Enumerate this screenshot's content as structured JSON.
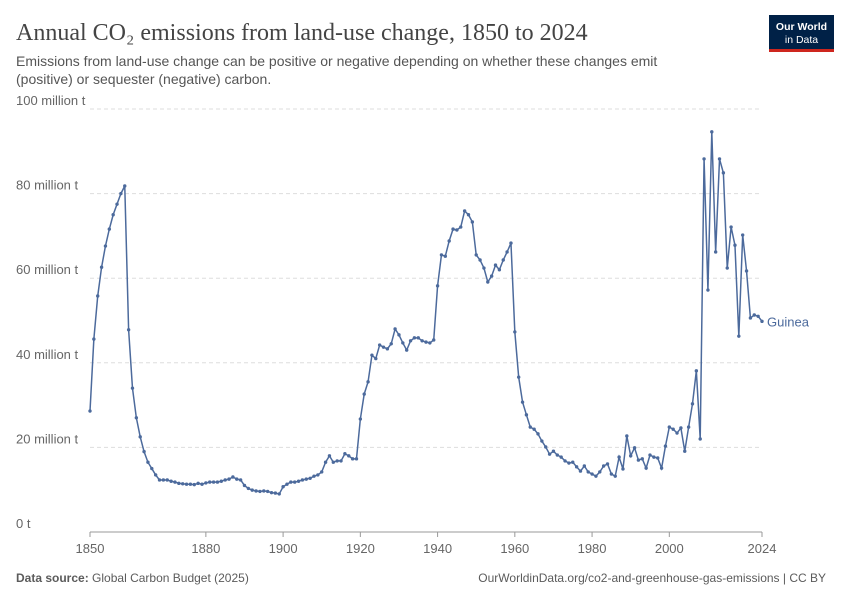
{
  "chart_data": {
    "type": "line",
    "title": "Annual CO₂ emissions from land-use change, 1850 to 2024",
    "subtitle": "Emissions from land-use change can be positive or negative depending on whether these changes emit (positive) or sequester (negative) carbon.",
    "logo": [
      "Our World",
      "in Data"
    ],
    "source_label": "Data source:",
    "source": "Global Carbon Budget (2025)",
    "footer_right": "OurWorldinData.org/co2-and-greenhouse-gas-emissions | CC BY",
    "x": [
      1850,
      1851,
      1852,
      1853,
      1854,
      1855,
      1856,
      1857,
      1858,
      1859,
      1860,
      1861,
      1862,
      1863,
      1864,
      1865,
      1866,
      1867,
      1868,
      1869,
      1870,
      1871,
      1872,
      1873,
      1874,
      1875,
      1876,
      1877,
      1878,
      1879,
      1880,
      1881,
      1882,
      1883,
      1884,
      1885,
      1886,
      1887,
      1888,
      1889,
      1890,
      1891,
      1892,
      1893,
      1894,
      1895,
      1896,
      1897,
      1898,
      1899,
      1900,
      1901,
      1902,
      1903,
      1904,
      1905,
      1906,
      1907,
      1908,
      1909,
      1910,
      1911,
      1912,
      1913,
      1914,
      1915,
      1916,
      1917,
      1918,
      1919,
      1920,
      1921,
      1922,
      1923,
      1924,
      1925,
      1926,
      1927,
      1928,
      1929,
      1930,
      1931,
      1932,
      1933,
      1934,
      1935,
      1936,
      1937,
      1938,
      1939,
      1940,
      1941,
      1942,
      1943,
      1944,
      1945,
      1946,
      1947,
      1948,
      1949,
      1950,
      1951,
      1952,
      1953,
      1954,
      1955,
      1956,
      1957,
      1958,
      1959,
      1960,
      1961,
      1962,
      1963,
      1964,
      1965,
      1966,
      1967,
      1968,
      1969,
      1970,
      1971,
      1972,
      1973,
      1974,
      1975,
      1976,
      1977,
      1978,
      1979,
      1980,
      1981,
      1982,
      1983,
      1984,
      1985,
      1986,
      1987,
      1988,
      1989,
      1990,
      1991,
      1992,
      1993,
      1994,
      1995,
      1996,
      1997,
      1998,
      1999,
      2000,
      2001,
      2002,
      2003,
      2004,
      2005,
      2006,
      2007,
      2008,
      2009,
      2010,
      2011,
      2012,
      2013,
      2014,
      2015,
      2016,
      2017,
      2018,
      2019,
      2020,
      2021,
      2022,
      2023,
      2024
    ],
    "series": [
      {
        "name": "Guinea",
        "color": "#4c6a9c",
        "values": [
          28.6,
          45.6,
          55.8,
          62.6,
          67.6,
          71.6,
          75,
          77.5,
          80,
          81.8,
          47.8,
          34,
          27,
          22.5,
          19,
          16.5,
          15,
          13.5,
          12.3,
          12.3,
          12.3,
          12,
          11.8,
          11.5,
          11.4,
          11.3,
          11.3,
          11.2,
          11.5,
          11.3,
          11.6,
          11.8,
          11.8,
          11.8,
          12,
          12.3,
          12.5,
          13,
          12.5,
          12.3,
          11,
          10.3,
          9.9,
          9.7,
          9.6,
          9.7,
          9.6,
          9.3,
          9.2,
          9,
          10.7,
          11.3,
          11.8,
          11.8,
          12,
          12.3,
          12.5,
          12.7,
          13.2,
          13.5,
          14.2,
          16.5,
          18,
          16.5,
          16.8,
          16.8,
          18.5,
          18,
          17.3,
          17.3,
          26.7,
          32.6,
          35.5,
          41.8,
          41,
          44.2,
          43.7,
          43.3,
          44.5,
          48,
          46.6,
          44.7,
          43,
          45.2,
          45.9,
          45.9,
          45.2,
          44.9,
          44.7,
          45.4,
          58.2,
          65.5,
          65.2,
          68.8,
          71.6,
          71.4,
          72.1,
          75.9,
          75,
          73.3,
          65.5,
          64.3,
          62.4,
          59.1,
          60.5,
          63.1,
          62,
          64.3,
          66.2,
          68.3,
          47.3,
          36.6,
          30.7,
          27.7,
          24.8,
          24.3,
          23.2,
          21.5,
          20.1,
          18.4,
          19.1,
          18.2,
          17.7,
          16.8,
          16.3,
          16.5,
          15.4,
          14.4,
          15.6,
          14.2,
          13.7,
          13.2,
          14.2,
          15.6,
          16.1,
          13.7,
          13.2,
          17.7,
          14.9,
          22.7,
          18,
          19.9,
          17,
          17.3,
          15.1,
          18.2,
          17.7,
          17.5,
          15.1,
          20.3,
          24.8,
          24.3,
          23.4,
          24.6,
          19.1,
          24.8,
          30.3,
          38.1,
          22,
          88.2,
          57.2,
          94.6,
          66.2,
          88.2,
          84.9,
          62.4,
          72.1,
          67.8,
          46.3,
          70.2,
          61.7,
          50.6,
          51.3,
          51,
          49.8
        ]
      }
    ],
    "xlim": [
      1850,
      2024
    ],
    "xticks": [
      1850,
      1880,
      1900,
      1920,
      1940,
      1960,
      1980,
      2000,
      2024
    ],
    "ylim": [
      0,
      100
    ],
    "yticks": [
      {
        "value": 0,
        "label": "0 t"
      },
      {
        "value": 20,
        "label": "20 million t"
      },
      {
        "value": 40,
        "label": "40 million t"
      },
      {
        "value": 60,
        "label": "60 million t"
      },
      {
        "value": 80,
        "label": "80 million t"
      },
      {
        "value": 100,
        "label": "100 million t"
      }
    ],
    "grid": true
  }
}
